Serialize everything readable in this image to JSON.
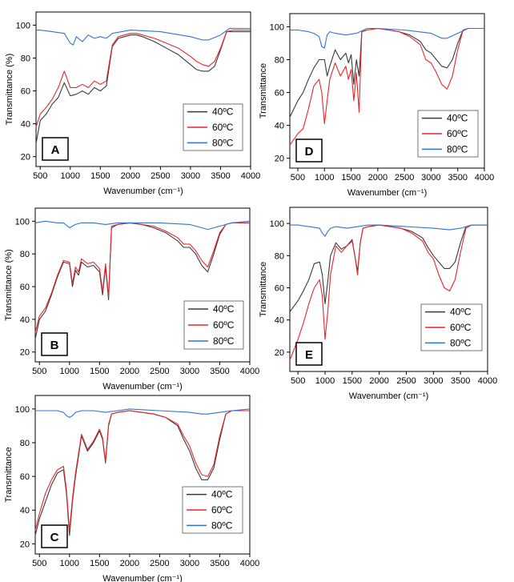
{
  "series_colors": {
    "40": "#3a3a3a",
    "60": "#e8262b",
    "80": "#2f74d0"
  },
  "chart_data": [
    {
      "panel": "A",
      "type": "line",
      "xlabel": "Wavenumber (cm⁻¹)",
      "ylabel": "Transmittance (%)",
      "xlim": [
        430,
        4000
      ],
      "ylim": [
        14,
        108
      ],
      "xticks": [
        "500",
        "1000",
        "1500",
        "2000",
        "2500",
        "3000",
        "3500",
        "4000"
      ],
      "yticks": [
        "20",
        "40",
        "60",
        "80",
        "100"
      ],
      "legend": [
        "40ºC",
        "60ºC",
        "80ºC"
      ],
      "series": [
        {
          "name": "40ºC",
          "x": [
            430,
            500,
            600,
            700,
            800,
            900,
            1000,
            1100,
            1200,
            1300,
            1400,
            1500,
            1600,
            1700,
            1800,
            1900,
            2000,
            2100,
            2200,
            2400,
            2600,
            2800,
            3000,
            3100,
            3200,
            3300,
            3400,
            3500,
            3600,
            3700,
            4000
          ],
          "y": [
            28,
            42,
            46,
            52,
            56,
            65,
            57,
            58,
            60,
            58,
            62,
            60,
            63,
            87,
            92,
            93,
            94,
            94,
            93,
            90,
            86,
            82,
            76,
            73,
            72,
            72,
            75,
            85,
            96,
            96,
            96
          ]
        },
        {
          "name": "60ºC",
          "x": [
            430,
            500,
            600,
            700,
            800,
            900,
            1000,
            1100,
            1200,
            1300,
            1400,
            1500,
            1600,
            1700,
            1800,
            1900,
            2000,
            2100,
            2200,
            2400,
            2600,
            2800,
            3000,
            3100,
            3200,
            3300,
            3400,
            3500,
            3600,
            3700,
            4000
          ],
          "y": [
            38,
            46,
            50,
            55,
            62,
            72,
            62,
            62,
            64,
            62,
            66,
            64,
            66,
            88,
            93,
            94,
            95,
            95,
            94,
            92,
            89,
            86,
            81,
            78,
            76,
            75,
            78,
            86,
            96,
            97,
            97
          ]
        },
        {
          "name": "80ºC",
          "x": [
            430,
            500,
            700,
            900,
            1000,
            1050,
            1100,
            1200,
            1300,
            1400,
            1500,
            1600,
            1700,
            2000,
            2500,
            3000,
            3200,
            3300,
            3500,
            3650,
            4000
          ],
          "y": [
            97,
            97,
            96,
            95,
            89,
            88,
            93,
            90,
            94,
            92,
            93,
            92,
            95,
            97,
            96,
            93,
            91,
            91,
            94,
            98,
            98
          ]
        }
      ]
    },
    {
      "panel": "B",
      "type": "line",
      "xlabel": "Wavenumber (cm⁻¹)",
      "ylabel": "Transmittance (%)",
      "xlim": [
        430,
        4000
      ],
      "ylim": [
        14,
        108
      ],
      "xticks": [
        "500",
        "1000",
        "1500",
        "2000",
        "2500",
        "3000",
        "3500",
        "4000"
      ],
      "yticks": [
        "20",
        "40",
        "60",
        "80",
        "100"
      ],
      "legend": [
        "40ºC",
        "60ºC",
        "80ºC"
      ],
      "series": [
        {
          "name": "40ºC",
          "x": [
            430,
            500,
            600,
            700,
            800,
            900,
            1000,
            1050,
            1100,
            1150,
            1200,
            1300,
            1400,
            1500,
            1550,
            1600,
            1650,
            1700,
            1800,
            2000,
            2200,
            2400,
            2600,
            2800,
            2900,
            3000,
            3100,
            3200,
            3300,
            3400,
            3500,
            3600,
            3700,
            4000
          ],
          "y": [
            28,
            40,
            45,
            55,
            66,
            75,
            74,
            60,
            70,
            67,
            75,
            72,
            73,
            69,
            55,
            72,
            52,
            96,
            98,
            99,
            98,
            96,
            93,
            88,
            84,
            84,
            80,
            73,
            69,
            80,
            92,
            98,
            99,
            99
          ]
        },
        {
          "name": "60ºC",
          "x": [
            430,
            500,
            600,
            700,
            800,
            900,
            1000,
            1050,
            1100,
            1150,
            1200,
            1300,
            1400,
            1500,
            1550,
            1600,
            1650,
            1700,
            1800,
            2000,
            2200,
            2400,
            2600,
            2800,
            2900,
            3000,
            3100,
            3200,
            3300,
            3400,
            3500,
            3600,
            3700,
            4000
          ],
          "y": [
            32,
            42,
            47,
            56,
            67,
            76,
            75,
            62,
            72,
            69,
            77,
            74,
            75,
            71,
            57,
            74,
            54,
            97,
            98,
            99,
            98,
            97,
            94,
            90,
            86,
            86,
            82,
            76,
            72,
            82,
            93,
            98,
            99,
            99
          ]
        },
        {
          "name": "80ºC",
          "x": [
            430,
            600,
            800,
            900,
            1000,
            1100,
            1200,
            1400,
            1600,
            1800,
            2000,
            2500,
            3000,
            3200,
            3300,
            3500,
            3700,
            4000
          ],
          "y": [
            99,
            100,
            99,
            99,
            96,
            98,
            99,
            99,
            98,
            99,
            99,
            99,
            98,
            96,
            95,
            97,
            99,
            100
          ]
        }
      ]
    },
    {
      "panel": "C",
      "type": "line",
      "xlabel": "Wavenumber (cm⁻¹)",
      "ylabel": "Transmittance",
      "xlim": [
        430,
        4000
      ],
      "ylim": [
        14,
        108
      ],
      "xticks": [
        "500",
        "1000",
        "1500",
        "2000",
        "2500",
        "3000",
        "3500",
        "4000"
      ],
      "yticks": [
        "20",
        "40",
        "60",
        "80",
        "100"
      ],
      "legend": [
        "40ºC",
        "60ºC",
        "80ºC"
      ],
      "series": [
        {
          "name": "40ºC",
          "x": [
            430,
            500,
            600,
            700,
            800,
            900,
            950,
            1000,
            1050,
            1100,
            1200,
            1300,
            1400,
            1500,
            1550,
            1600,
            1650,
            1700,
            1800,
            2000,
            2200,
            2400,
            2600,
            2800,
            2900,
            3000,
            3100,
            3200,
            3300,
            3400,
            3500,
            3600,
            3700,
            4000
          ],
          "y": [
            25,
            35,
            45,
            55,
            62,
            64,
            50,
            25,
            45,
            60,
            84,
            75,
            80,
            87,
            82,
            68,
            90,
            97,
            98,
            99,
            98,
            97,
            95,
            90,
            82,
            75,
            65,
            58,
            58,
            65,
            82,
            97,
            99,
            99
          ]
        },
        {
          "name": "60ºC",
          "x": [
            430,
            500,
            600,
            700,
            800,
            900,
            950,
            1000,
            1050,
            1100,
            1200,
            1300,
            1400,
            1500,
            1550,
            1600,
            1650,
            1700,
            1800,
            2000,
            2200,
            2400,
            2600,
            2800,
            2900,
            3000,
            3100,
            3200,
            3300,
            3400,
            3500,
            3600,
            3700,
            4000
          ],
          "y": [
            28,
            38,
            50,
            58,
            64,
            66,
            52,
            28,
            47,
            62,
            85,
            76,
            81,
            88,
            83,
            69,
            91,
            97,
            98,
            99,
            98,
            97,
            95,
            91,
            84,
            78,
            68,
            61,
            60,
            67,
            84,
            97,
            99,
            99
          ]
        },
        {
          "name": "80ºC",
          "x": [
            430,
            600,
            800,
            900,
            950,
            1000,
            1050,
            1100,
            1200,
            1400,
            1600,
            1800,
            2000,
            2500,
            3000,
            3200,
            3300,
            3500,
            3700,
            4000
          ],
          "y": [
            99,
            99,
            99,
            98,
            96,
            95,
            96,
            98,
            99,
            99,
            98,
            99,
            100,
            99,
            98,
            97,
            97,
            98,
            99,
            100
          ]
        }
      ]
    },
    {
      "panel": "D",
      "type": "line",
      "xlabel": "Wavenumber (cm⁻¹)",
      "ylabel": "Transmittance",
      "xlim": [
        350,
        4000
      ],
      "ylim": [
        14,
        108
      ],
      "xticks": [
        "500",
        "1000",
        "1500",
        "2000",
        "2500",
        "3000",
        "3500",
        "4000"
      ],
      "yticks": [
        "20",
        "40",
        "60",
        "80",
        "100"
      ],
      "legend": [
        "40ºC",
        "60ºC",
        "80ºC"
      ],
      "series": [
        {
          "name": "40ºC",
          "x": [
            350,
            500,
            600,
            700,
            800,
            900,
            1000,
            1050,
            1100,
            1200,
            1300,
            1400,
            1450,
            1500,
            1550,
            1600,
            1650,
            1700,
            1800,
            2000,
            2200,
            2400,
            2600,
            2800,
            2900,
            3000,
            3100,
            3200,
            3300,
            3400,
            3500,
            3600,
            3700,
            4000
          ],
          "y": [
            45,
            55,
            60,
            68,
            75,
            80,
            80,
            70,
            76,
            86,
            80,
            84,
            78,
            83,
            65,
            80,
            70,
            97,
            98,
            99,
            98,
            97,
            95,
            91,
            86,
            84,
            80,
            76,
            75,
            80,
            90,
            98,
            99,
            99
          ]
        },
        {
          "name": "60ºC",
          "x": [
            350,
            500,
            600,
            700,
            800,
            900,
            950,
            1000,
            1050,
            1100,
            1200,
            1300,
            1400,
            1450,
            1500,
            1550,
            1600,
            1650,
            1700,
            1800,
            2000,
            2200,
            2400,
            2600,
            2800,
            2900,
            3000,
            3100,
            3200,
            3300,
            3400,
            3500,
            3600,
            3700,
            4000
          ],
          "y": [
            28,
            35,
            38,
            50,
            64,
            68,
            60,
            41,
            55,
            68,
            78,
            70,
            76,
            68,
            74,
            55,
            72,
            48,
            97,
            98,
            99,
            98,
            97,
            94,
            89,
            80,
            78,
            72,
            65,
            62,
            70,
            86,
            98,
            99,
            99
          ]
        },
        {
          "name": "80ºC",
          "x": [
            350,
            500,
            700,
            800,
            900,
            950,
            1000,
            1050,
            1100,
            1200,
            1400,
            1600,
            1800,
            2000,
            2500,
            3000,
            3200,
            3300,
            3500,
            3700,
            4000
          ],
          "y": [
            98,
            98,
            97,
            96,
            94,
            88,
            87,
            95,
            97,
            96,
            95,
            96,
            99,
            99,
            98,
            96,
            93,
            93,
            96,
            99,
            99
          ]
        }
      ]
    },
    {
      "panel": "E",
      "type": "line",
      "xlabel": "Wavenumber (cm⁻¹)",
      "ylabel": "Transmittance",
      "xlim": [
        350,
        4000
      ],
      "ylim": [
        8,
        110
      ],
      "xticks": [
        "500",
        "1000",
        "1500",
        "2000",
        "2500",
        "3000",
        "3500",
        "4000"
      ],
      "yticks": [
        "20",
        "40",
        "60",
        "80",
        "100"
      ],
      "legend": [
        "40ºC",
        "60ºC",
        "80ºC"
      ],
      "series": [
        {
          "name": "40ºC",
          "x": [
            350,
            500,
            600,
            700,
            800,
            900,
            950,
            1000,
            1050,
            1100,
            1200,
            1300,
            1400,
            1500,
            1550,
            1600,
            1650,
            1700,
            1800,
            2000,
            2200,
            2400,
            2600,
            2800,
            2900,
            3000,
            3100,
            3200,
            3300,
            3400,
            3500,
            3600,
            3700,
            4000
          ],
          "y": [
            45,
            52,
            58,
            65,
            75,
            76,
            68,
            50,
            64,
            80,
            88,
            84,
            86,
            90,
            80,
            70,
            88,
            97,
            98,
            99,
            98,
            97,
            95,
            91,
            85,
            80,
            76,
            72,
            72,
            76,
            88,
            98,
            99,
            99
          ]
        },
        {
          "name": "60ºC",
          "x": [
            350,
            500,
            600,
            700,
            800,
            900,
            950,
            1000,
            1050,
            1100,
            1200,
            1300,
            1400,
            1500,
            1550,
            1600,
            1650,
            1700,
            1800,
            2000,
            2200,
            2400,
            2600,
            2800,
            2900,
            3000,
            3100,
            3200,
            3300,
            3400,
            3500,
            3600,
            3700,
            4000
          ],
          "y": [
            15,
            28,
            38,
            50,
            60,
            65,
            55,
            28,
            45,
            68,
            86,
            82,
            86,
            89,
            80,
            68,
            88,
            97,
            98,
            99,
            98,
            97,
            94,
            89,
            82,
            78,
            68,
            60,
            58,
            65,
            82,
            97,
            99,
            99
          ]
        },
        {
          "name": "80ºC",
          "x": [
            350,
            500,
            700,
            900,
            950,
            1000,
            1050,
            1100,
            1200,
            1400,
            1600,
            1800,
            2000,
            2500,
            3000,
            3300,
            3500,
            3700,
            4000
          ],
          "y": [
            99,
            99,
            98,
            97,
            94,
            92,
            95,
            97,
            98,
            97,
            98,
            99,
            99,
            98,
            97,
            96,
            97,
            99,
            99
          ]
        }
      ]
    }
  ]
}
